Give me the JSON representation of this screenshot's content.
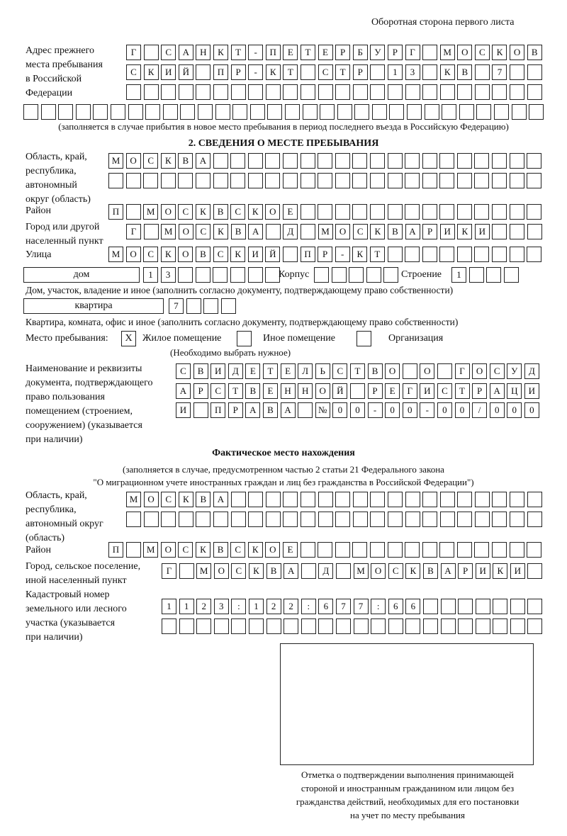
{
  "header": {
    "page_side": "Оборотная сторона первого листа"
  },
  "previous_address": {
    "label": "Адрес прежнего\nместа пребывания\nв Российской\nФедерации",
    "rows": [
      [
        "Г",
        "",
        "С",
        "А",
        "Н",
        "К",
        "Т",
        "-",
        "П",
        "Е",
        "Т",
        "Е",
        "Р",
        "Б",
        "У",
        "Р",
        "Г",
        "",
        "М",
        "О",
        "С",
        "К",
        "О",
        "В"
      ],
      [
        "С",
        "К",
        "И",
        "Й",
        "",
        "П",
        "Р",
        "-",
        "К",
        "Т",
        "",
        "С",
        "Т",
        "Р",
        "",
        "1",
        "3",
        "",
        "К",
        "В",
        "",
        "7",
        "",
        ""
      ],
      [
        "",
        "",
        "",
        "",
        "",
        "",
        "",
        "",
        "",
        "",
        "",
        "",
        "",
        "",
        "",
        "",
        "",
        "",
        "",
        "",
        "",
        "",
        "",
        ""
      ],
      [
        "",
        "",
        "",
        "",
        "",
        "",
        "",
        "",
        "",
        "",
        "",
        "",
        "",
        "",
        "",
        "",
        "",
        "",
        "",
        "",
        "",
        "",
        "",
        "",
        "",
        "",
        "",
        "",
        "",
        ""
      ]
    ],
    "note": "(заполняется в случае прибытия в новое место пребывания в период последнего въезда в Российскую Федерацию)"
  },
  "stay": {
    "heading": "2. СВЕДЕНИЯ О МЕСТЕ ПРЕБЫВАНИЯ",
    "region_label": "Область, край,\nреспублика,\nавтономный\nокруг (область)",
    "region_rows": [
      [
        "М",
        "О",
        "С",
        "К",
        "В",
        "А",
        "",
        "",
        "",
        "",
        "",
        "",
        "",
        "",
        "",
        "",
        "",
        "",
        "",
        "",
        "",
        "",
        "",
        "",
        ""
      ],
      [
        "",
        "",
        "",
        "",
        "",
        "",
        "",
        "",
        "",
        "",
        "",
        "",
        "",
        "",
        "",
        "",
        "",
        "",
        "",
        "",
        "",
        "",
        "",
        "",
        ""
      ]
    ],
    "district_label": "Район",
    "district": [
      "П",
      "",
      "М",
      "О",
      "С",
      "К",
      "В",
      "С",
      "К",
      "О",
      "Е",
      "",
      "",
      "",
      "",
      "",
      "",
      "",
      "",
      "",
      "",
      "",
      "",
      "",
      ""
    ],
    "city_label": "Город или другой\nнаселенный пункт",
    "city": [
      "Г",
      "",
      "М",
      "О",
      "С",
      "К",
      "В",
      "А",
      "",
      "Д",
      "",
      "М",
      "О",
      "С",
      "К",
      "В",
      "А",
      "Р",
      "И",
      "К",
      "И",
      "",
      "",
      ""
    ],
    "street_label": "Улица",
    "street": [
      "М",
      "О",
      "С",
      "К",
      "О",
      "В",
      "С",
      "К",
      "И",
      "Й",
      "",
      "П",
      "Р",
      "-",
      "К",
      "Т",
      "",
      "",
      "",
      "",
      "",
      "",
      "",
      "",
      ""
    ],
    "house_type": "дом",
    "house": [
      "1",
      "3",
      "",
      "",
      "",
      "",
      "",
      ""
    ],
    "korpus_label": "Корпус",
    "korpus": [
      "",
      "",
      "",
      "",
      ""
    ],
    "building_label": "Строение",
    "building": [
      "1",
      "",
      "",
      ""
    ],
    "house_note": "Дом, участок, владение и иное (заполнить согласно документу, подтверждающему право собственности)",
    "apt_type": "квартира",
    "apt": [
      "7",
      "",
      "",
      ""
    ],
    "apt_note": "Квартира, комната, офис и иное (заполнить согласно документу, подтверждающему право собственности)",
    "place_label": "Место пребывания:",
    "place_options": [
      {
        "label": "Жилое помещение",
        "mark": "X"
      },
      {
        "label": "Иное помещение",
        "mark": ""
      },
      {
        "label": "Организация",
        "mark": ""
      }
    ],
    "place_note": "(Необходимо выбрать нужное)",
    "doc_label": "Наименование и реквизиты\nдокумента, подтверждающего\nправо пользования\nпомещением (строением,\nсооружением) (указывается\nпри наличии)",
    "doc_rows": [
      [
        "С",
        "В",
        "И",
        "Д",
        "Е",
        "Т",
        "Е",
        "Л",
        "Ь",
        "С",
        "Т",
        "В",
        "О",
        "",
        "О",
        "",
        "Г",
        "О",
        "С",
        "У",
        "Д"
      ],
      [
        "А",
        "Р",
        "С",
        "Т",
        "В",
        "Е",
        "Н",
        "Н",
        "О",
        "Й",
        "",
        "Р",
        "Е",
        "Г",
        "И",
        "С",
        "Т",
        "Р",
        "А",
        "Ц",
        "И"
      ],
      [
        "И",
        "",
        "П",
        "Р",
        "А",
        "В",
        "А",
        "",
        "№",
        "0",
        "0",
        "-",
        "0",
        "0",
        "-",
        "0",
        "0",
        "/",
        "0",
        "0",
        "0"
      ]
    ]
  },
  "actual": {
    "heading": "Фактическое место нахождения",
    "note": "(заполняется в случае, предусмотренном частью 2 статьи 21 Федерального закона\n\"О миграционном учете иностранных граждан и лиц без гражданства в Российской Федерации\")",
    "region_label": "Область, край,\nреспублика,\nавтономный округ\n(область)",
    "region_rows": [
      [
        "М",
        "О",
        "С",
        "К",
        "В",
        "А",
        "",
        "",
        "",
        "",
        "",
        "",
        "",
        "",
        "",
        "",
        "",
        "",
        "",
        "",
        "",
        "",
        "",
        ""
      ],
      [
        "",
        "",
        "",
        "",
        "",
        "",
        "",
        "",
        "",
        "",
        "",
        "",
        "",
        "",
        "",
        "",
        "",
        "",
        "",
        "",
        "",
        "",
        "",
        ""
      ]
    ],
    "district_label": "Район",
    "district": [
      "П",
      "",
      "М",
      "О",
      "С",
      "К",
      "В",
      "С",
      "К",
      "О",
      "Е",
      "",
      "",
      "",
      "",
      "",
      "",
      "",
      "",
      "",
      "",
      "",
      "",
      "",
      " "
    ],
    "city_label": "Город, сельское поселение,\nиной населенный пункт",
    "city": [
      "Г",
      "",
      "М",
      "О",
      "С",
      "К",
      "В",
      "А",
      "",
      "Д",
      "",
      "М",
      "О",
      "С",
      "К",
      "В",
      "А",
      "Р",
      "И",
      "К",
      "И",
      ""
    ],
    "cadastre_label": "Кадастровый номер\nземельного или лесного\nучастка (указывается\nпри наличии)",
    "cadastre_rows": [
      [
        "1",
        "1",
        "2",
        "3",
        ":",
        "1",
        "2",
        "2",
        ":",
        "6",
        "7",
        "7",
        ":",
        "6",
        "6",
        "",
        "",
        "",
        "",
        "",
        "",
        ""
      ],
      [
        "",
        "",
        "",
        "",
        "",
        "",
        "",
        "",
        "",
        "",
        "",
        "",
        "",
        "",
        "",
        "",
        "",
        "",
        "",
        "",
        "",
        ""
      ]
    ]
  },
  "confirmation": {
    "caption": "Отметка о подтверждении выполнения принимающей\nстороной и иностранным гражданином или лицом без\nгражданства действий, необходимых для его постановки\nна учет по месту пребывания"
  }
}
